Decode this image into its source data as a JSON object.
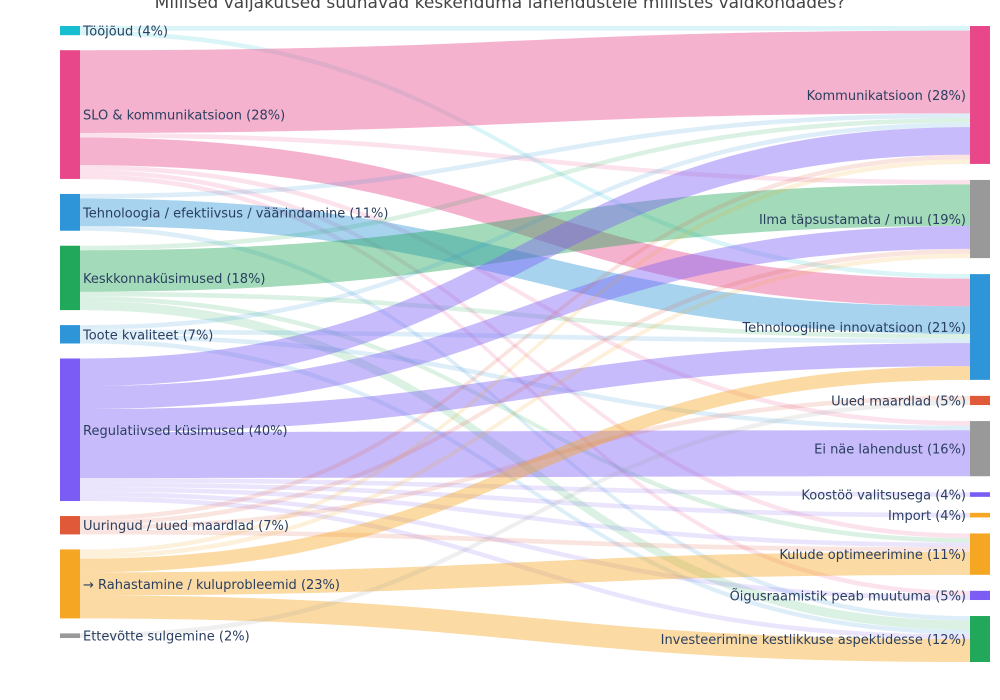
{
  "chart_data": {
    "type": "sankey",
    "title": "Millised väljakutsed suunavad keskenduma lahendustele millistes valdkondades?",
    "sources": [
      {
        "id": "s1",
        "label": "Tööjõud (4%)",
        "color": "#17becf"
      },
      {
        "id": "s2",
        "label": "SLO & kommunikatsioon (28%)",
        "color": "#e8488a"
      },
      {
        "id": "s3",
        "label": "Tehnoloogia / efektiivsus / väärindamine (11%)",
        "color": "#2e96d8"
      },
      {
        "id": "s4",
        "label": "Keskkonnaküsimused (18%)",
        "color": "#22a85a"
      },
      {
        "id": "s5",
        "label": "Toote kvaliteet (7%)",
        "color": "#2e96d8"
      },
      {
        "id": "s6",
        "label": "Regulatiivsed küsimused (40%)",
        "color": "#7b5cf5"
      },
      {
        "id": "s7",
        "label": "Uuringud / uued maardlad (7%)",
        "color": "#e05a3a"
      },
      {
        "id": "s8",
        "label": "→ Rahastamine / kuluprobleemid (23%)",
        "color": "#f5a623"
      },
      {
        "id": "s9",
        "label": "Ettevõtte sulgemine (2%)",
        "color": "#999999"
      }
    ],
    "targets": [
      {
        "id": "t1",
        "label": "Kommunikatsioon (28%)",
        "color": "#e8488a"
      },
      {
        "id": "t2",
        "label": "Ilma täpsustamata / muu (19%)",
        "color": "#999999"
      },
      {
        "id": "t3",
        "label": "Tehnoloogiline innovatsioon (21%)",
        "color": "#2e96d8"
      },
      {
        "id": "t4",
        "label": "Uued maardlad (5%)",
        "color": "#e05a3a"
      },
      {
        "id": "t5",
        "label": "Ei näe lahendust (16%)",
        "color": "#999999"
      },
      {
        "id": "t6",
        "label": "Koostöö valitsusega (4%)",
        "color": "#7b5cf5"
      },
      {
        "id": "t7",
        "label": "Import (4%)",
        "color": "#f5a623"
      },
      {
        "id": "t8",
        "label": "Kulude optimeerimine (11%)",
        "color": "#f5a623"
      },
      {
        "id": "t9",
        "label": "Õigusraamistik peab muutuma  (5%)",
        "color": "#7b5cf5"
      },
      {
        "id": "t10",
        "label": "Investeerimine kestlikkuse aspektidesse (12%)",
        "color": "#22a85a"
      }
    ],
    "links": [
      {
        "source": "s1",
        "target": "t1",
        "value": 1
      },
      {
        "source": "s1",
        "target": "t3",
        "value": 1
      },
      {
        "source": "s2",
        "target": "t1",
        "value": 18
      },
      {
        "source": "s2",
        "target": "t2",
        "value": 1
      },
      {
        "source": "s2",
        "target": "t3",
        "value": 6
      },
      {
        "source": "s2",
        "target": "t5",
        "value": 1
      },
      {
        "source": "s2",
        "target": "t8",
        "value": 1
      },
      {
        "source": "s2",
        "target": "t9",
        "value": 1
      },
      {
        "source": "s3",
        "target": "t1",
        "value": 1
      },
      {
        "source": "s3",
        "target": "t3",
        "value": 6
      },
      {
        "source": "s3",
        "target": "t10",
        "value": 1
      },
      {
        "source": "s4",
        "target": "t1",
        "value": 1
      },
      {
        "source": "s4",
        "target": "t2",
        "value": 9
      },
      {
        "source": "s4",
        "target": "t3",
        "value": 1
      },
      {
        "source": "s4",
        "target": "t8",
        "value": 1
      },
      {
        "source": "s4",
        "target": "t10",
        "value": 2
      },
      {
        "source": "s5",
        "target": "t1",
        "value": 1
      },
      {
        "source": "s5",
        "target": "t3",
        "value": 1
      },
      {
        "source": "s5",
        "target": "t5",
        "value": 1
      },
      {
        "source": "s5",
        "target": "t10",
        "value": 1
      },
      {
        "source": "s6",
        "target": "t1",
        "value": 6
      },
      {
        "source": "s6",
        "target": "t2",
        "value": 5
      },
      {
        "source": "s6",
        "target": "t3",
        "value": 5
      },
      {
        "source": "s6",
        "target": "t5",
        "value": 10
      },
      {
        "source": "s6",
        "target": "t6",
        "value": 1
      },
      {
        "source": "s6",
        "target": "t7",
        "value": 1
      },
      {
        "source": "s6",
        "target": "t9",
        "value": 1
      },
      {
        "source": "s6",
        "target": "t10",
        "value": 1
      },
      {
        "source": "s6",
        "target": "t8",
        "value": 1
      },
      {
        "source": "s7",
        "target": "t1",
        "value": 1
      },
      {
        "source": "s7",
        "target": "t2",
        "value": 1
      },
      {
        "source": "s7",
        "target": "t4",
        "value": 1
      },
      {
        "source": "s7",
        "target": "t8",
        "value": 1
      },
      {
        "source": "s8",
        "target": "t1",
        "value": 1
      },
      {
        "source": "s8",
        "target": "t2",
        "value": 1
      },
      {
        "source": "s8",
        "target": "t3",
        "value": 3
      },
      {
        "source": "s8",
        "target": "t8",
        "value": 5
      },
      {
        "source": "s8",
        "target": "t10",
        "value": 5
      },
      {
        "source": "s9",
        "target": "t4",
        "value": 1
      }
    ]
  }
}
